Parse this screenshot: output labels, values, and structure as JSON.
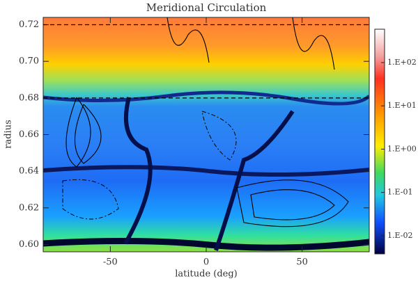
{
  "chart_data": {
    "type": "contour",
    "title": "Meridional Circulation",
    "x_label": "latitude (deg)",
    "y_label": "radius",
    "xlim": [
      -85,
      85
    ],
    "xticks": [
      -50,
      0,
      50
    ],
    "ylim": [
      0.596,
      0.724
    ],
    "yticks": [
      {
        "value": 0.6,
        "label": "0.60"
      },
      {
        "value": 0.62,
        "label": "0.62"
      },
      {
        "value": 0.64,
        "label": "0.64"
      },
      {
        "value": 0.66,
        "label": "0.66"
      },
      {
        "value": 0.68,
        "label": "0.68"
      },
      {
        "value": 0.7,
        "label": "0.70"
      },
      {
        "value": 0.72,
        "label": "0.72"
      }
    ],
    "reference_lines": [
      0.72,
      0.68
    ],
    "colorbar": {
      "log": true,
      "lim": [
        0.0038,
        590
      ],
      "ticks": [
        {
          "value": 0.01,
          "label": "1.E-02"
        },
        {
          "value": 0.1,
          "label": "1.E-01"
        },
        {
          "value": 1,
          "label": "1.E+00"
        },
        {
          "value": 10,
          "label": "1.E+01"
        },
        {
          "value": 100,
          "label": "1.E+02"
        }
      ]
    }
  }
}
